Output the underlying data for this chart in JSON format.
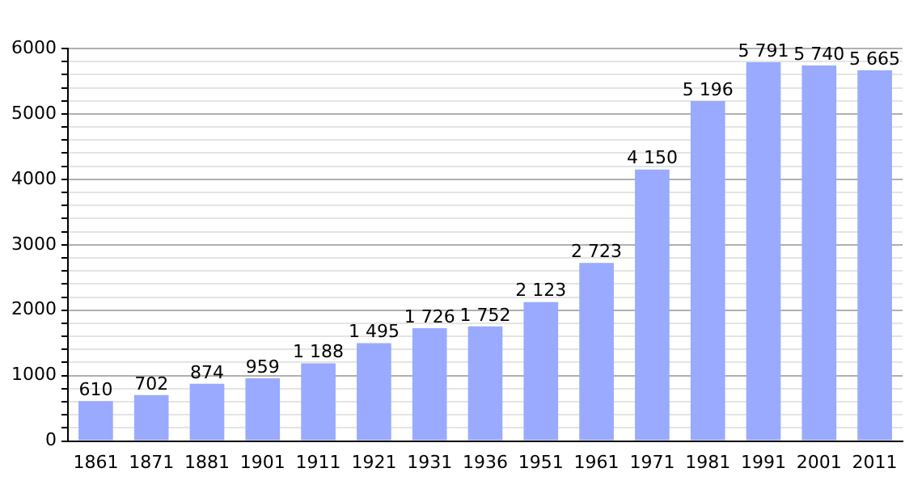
{
  "chart_data": {
    "type": "bar",
    "categories": [
      "1861",
      "1871",
      "1881",
      "1901",
      "1911",
      "1921",
      "1931",
      "1936",
      "1951",
      "1961",
      "1971",
      "1981",
      "1991",
      "2001",
      "2011"
    ],
    "values": [
      610,
      702,
      874,
      959,
      1188,
      1495,
      1726,
      1752,
      2123,
      2723,
      4150,
      5196,
      5791,
      5740,
      5665
    ],
    "value_labels": [
      "610",
      "702",
      "874",
      "959",
      "1 188",
      "1 495",
      "1 726",
      "1 752",
      "2 123",
      "2 723",
      "4 150",
      "5 196",
      "5 791",
      "5 740",
      "5 665"
    ],
    "color": "#99aaff",
    "ylim": [
      0,
      6000
    ],
    "yticks": [
      0,
      {
        "value": 200,
        "label": null
      },
      {
        "value": 400,
        "label": null
      },
      {
        "value": 600,
        "label": null
      },
      {
        "value": 800,
        "label": null
      },
      1000,
      {
        "value": 1200,
        "label": null
      },
      {
        "value": 1400,
        "label": null
      },
      {
        "value": 1600,
        "label": null
      },
      {
        "value": 1800,
        "label": null
      },
      2000,
      {
        "value": 2200,
        "label": null
      },
      {
        "value": 2400,
        "label": null
      },
      {
        "value": 2600,
        "label": null
      },
      {
        "value": 2800,
        "label": null
      },
      3000,
      {
        "value": 3200,
        "label": null
      },
      {
        "value": 3400,
        "label": null
      },
      {
        "value": 3600,
        "label": null
      },
      {
        "value": 3800,
        "label": null
      },
      4000,
      {
        "value": 4200,
        "label": null
      },
      {
        "value": 4400,
        "label": null
      },
      {
        "value": 4600,
        "label": null
      },
      {
        "value": 4800,
        "label": null
      },
      5000,
      {
        "value": 5200,
        "label": null
      },
      {
        "value": 5400,
        "label": null
      },
      {
        "value": 5600,
        "label": null
      },
      {
        "value": 5800,
        "label": null
      },
      6000
    ],
    "grid": "y"
  }
}
